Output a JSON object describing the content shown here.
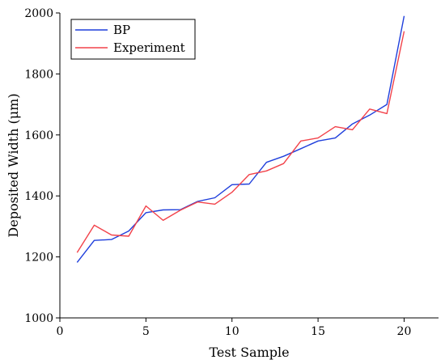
{
  "chart_data": {
    "type": "line",
    "title": "",
    "xlabel": "Test Sample",
    "ylabel": "Deposited Width (μm)",
    "xlim": [
      0,
      22
    ],
    "ylim": [
      1000,
      2000
    ],
    "xticks": [
      0,
      5,
      10,
      15,
      20
    ],
    "yticks": [
      1000,
      1200,
      1400,
      1600,
      1800,
      2000
    ],
    "legend": "top-left",
    "grid": false,
    "x": [
      1,
      2,
      3,
      4,
      5,
      6,
      7,
      8,
      9,
      10,
      11,
      12,
      13,
      14,
      15,
      16,
      17,
      18,
      19,
      20
    ],
    "series": [
      {
        "name": "BP",
        "color": "#1f3fdc",
        "values": [
          1182,
          1254,
          1257,
          1285,
          1345,
          1354,
          1355,
          1382,
          1394,
          1437,
          1439,
          1510,
          1530,
          1555,
          1580,
          1590,
          1636,
          1665,
          1700,
          1990
        ]
      },
      {
        "name": "Experiment",
        "color": "#f2424a",
        "values": [
          1214,
          1304,
          1272,
          1268,
          1367,
          1320,
          1353,
          1380,
          1373,
          1412,
          1470,
          1482,
          1506,
          1580,
          1590,
          1627,
          1617,
          1685,
          1670,
          1940
        ]
      }
    ]
  }
}
